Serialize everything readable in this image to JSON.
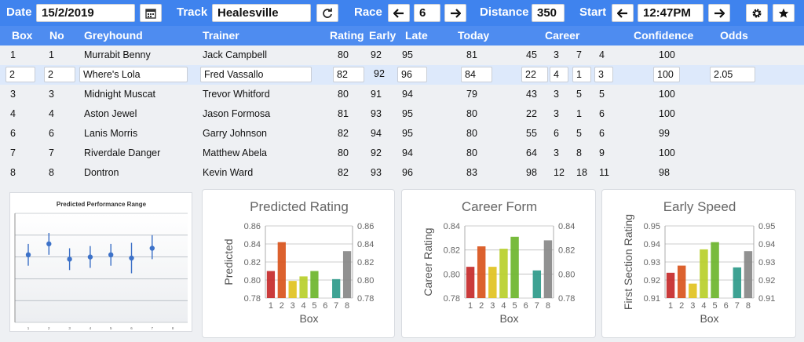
{
  "toolbar": {
    "date_label": "Date",
    "date_value": "15/2/2019",
    "track_label": "Track",
    "track_value": "Healesville",
    "race_label": "Race",
    "race_value": "6",
    "distance_label": "Distance",
    "distance_value": "350",
    "start_label": "Start",
    "start_value": "12:47PM"
  },
  "table": {
    "headers": {
      "box": "Box",
      "no": "No",
      "greyhound": "Greyhound",
      "trainer": "Trainer",
      "rating": "Rating",
      "early": "Early",
      "late": "Late",
      "today": "Today",
      "career": "Career",
      "confidence": "Confidence",
      "odds": "Odds"
    },
    "rows": [
      {
        "box": "1",
        "no": "1",
        "greyhound": "Murrabit Benny",
        "trainer": "Jack Campbell",
        "rating": "80",
        "early": "92",
        "late": "95",
        "today": "81",
        "c1": "45",
        "c2": "3",
        "c3": "7",
        "c4": "4",
        "confidence": "100",
        "odds": ""
      },
      {
        "box": "2",
        "no": "2",
        "greyhound": "Where's Lola",
        "trainer": "Fred Vassallo",
        "rating": "82",
        "early": "92",
        "late": "96",
        "today": "84",
        "c1": "22",
        "c2": "4",
        "c3": "1",
        "c4": "3",
        "confidence": "100",
        "odds": "2.05"
      },
      {
        "box": "3",
        "no": "3",
        "greyhound": "Midnight Muscat",
        "trainer": "Trevor Whitford",
        "rating": "80",
        "early": "91",
        "late": "94",
        "today": "79",
        "c1": "43",
        "c2": "3",
        "c3": "5",
        "c4": "5",
        "confidence": "100",
        "odds": ""
      },
      {
        "box": "4",
        "no": "4",
        "greyhound": "Aston Jewel",
        "trainer": "Jason Formosa",
        "rating": "81",
        "early": "93",
        "late": "95",
        "today": "80",
        "c1": "22",
        "c2": "3",
        "c3": "1",
        "c4": "6",
        "confidence": "100",
        "odds": ""
      },
      {
        "box": "6",
        "no": "6",
        "greyhound": "Lanis Morris",
        "trainer": "Garry Johnson",
        "rating": "82",
        "early": "94",
        "late": "95",
        "today": "80",
        "c1": "55",
        "c2": "6",
        "c3": "5",
        "c4": "6",
        "confidence": "99",
        "odds": ""
      },
      {
        "box": "7",
        "no": "7",
        "greyhound": "Riverdale Danger",
        "trainer": "Matthew Abela",
        "rating": "80",
        "early": "92",
        "late": "94",
        "today": "80",
        "c1": "64",
        "c2": "3",
        "c3": "8",
        "c4": "9",
        "confidence": "100",
        "odds": ""
      },
      {
        "box": "8",
        "no": "8",
        "greyhound": "Dontron",
        "trainer": "Kevin Ward",
        "rating": "82",
        "early": "93",
        "late": "96",
        "today": "83",
        "c1": "98",
        "c2": "12",
        "c3": "18",
        "c4": "11",
        "confidence": "98",
        "odds": ""
      }
    ]
  },
  "icons": {
    "calendar": "calendar-icon",
    "refresh": "refresh-icon",
    "prev": "arrow-left-icon",
    "next": "arrow-right-icon",
    "settings": "gear-icon",
    "favorite": "star-icon"
  },
  "colors": {
    "accent": "#3f83ee",
    "header": "#4e8cf0",
    "selected_row": "#dde9fb",
    "bars": [
      "#c62a2a",
      "#d9541c",
      "#e1c21f",
      "#b8cf2a",
      "#6cb52c",
      "#3fa33d",
      "#2e9a8a"
    ]
  },
  "chart_data": [
    {
      "type": "scatter",
      "title": "Predicted Performance Range",
      "categories": [
        "1",
        "2",
        "3",
        "4",
        "5",
        "6",
        "7",
        "8"
      ],
      "points": [
        {
          "x": 1,
          "y": 0.62,
          "low": 0.52,
          "high": 0.72
        },
        {
          "x": 2,
          "y": 0.72,
          "low": 0.62,
          "high": 0.82
        },
        {
          "x": 3,
          "y": 0.58,
          "low": 0.48,
          "high": 0.68
        },
        {
          "x": 4,
          "y": 0.6,
          "low": 0.5,
          "high": 0.7
        },
        {
          "x": 5,
          "y": 0.62,
          "low": 0.52,
          "high": 0.72
        },
        {
          "x": 6,
          "y": 0.59,
          "low": 0.45,
          "high": 0.73
        },
        {
          "x": 7,
          "y": 0.68,
          "low": 0.58,
          "high": 0.8
        }
      ],
      "ylim": [
        0,
        1
      ],
      "grid": true
    },
    {
      "type": "bar",
      "title": "Predicted Rating",
      "xlabel": "Box",
      "ylabel": "Predicted",
      "categories": [
        "1",
        "2",
        "3",
        "4",
        "5",
        "6",
        "7",
        "8"
      ],
      "values": [
        0.81,
        0.842,
        0.799,
        0.804,
        0.81,
        0.0,
        0.801,
        0.832
      ],
      "ylim": [
        0.78,
        0.86
      ],
      "yticks": [
        "0.78",
        "0.80",
        "0.82",
        "0.84",
        "0.86"
      ],
      "secondary_axis": true,
      "grid": true
    },
    {
      "type": "bar",
      "title": "Career Form",
      "xlabel": "Box",
      "ylabel": "Career Rating",
      "categories": [
        "1",
        "2",
        "3",
        "4",
        "5",
        "6",
        "7",
        "8"
      ],
      "values": [
        0.806,
        0.823,
        0.806,
        0.821,
        0.831,
        0.0,
        0.803,
        0.828
      ],
      "ylim": [
        0.78,
        0.84
      ],
      "yticks": [
        "0.78",
        "0.80",
        "0.82",
        "0.84"
      ],
      "secondary_axis": true,
      "grid": true
    },
    {
      "type": "bar",
      "title": "Early Speed",
      "xlabel": "Box",
      "ylabel": "First Section Rating",
      "categories": [
        "1",
        "2",
        "3",
        "4",
        "5",
        "6",
        "7",
        "8"
      ],
      "values": [
        0.924,
        0.928,
        0.918,
        0.937,
        0.941,
        0.0,
        0.927,
        0.936
      ],
      "ylim": [
        0.91,
        0.95
      ],
      "yticks": [
        "0.91",
        "0.92",
        "0.93",
        "0.94",
        "0.95"
      ],
      "secondary_axis": true,
      "grid": true
    }
  ]
}
